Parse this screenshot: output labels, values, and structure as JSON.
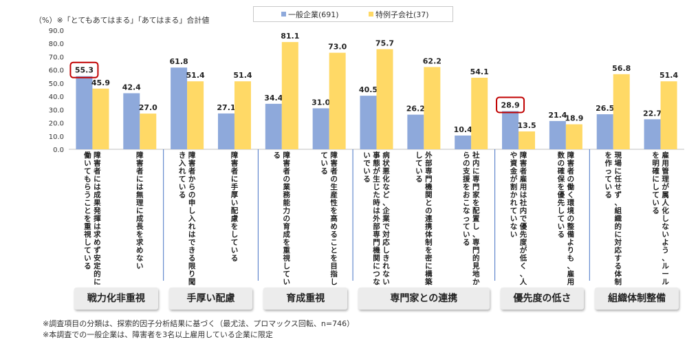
{
  "header": {
    "unit_note": "（%）※「とてもあてはまる」「あてはまる」合計値"
  },
  "legend": {
    "items": [
      {
        "label": "一般企業(691)",
        "color": "#8EA9DB"
      },
      {
        "label": "特例子会社(37)",
        "color": "#FFD966"
      }
    ]
  },
  "footer": {
    "note1": "※調査項目の分類は、探索的因子分析結果に基づく（最尤法、プロマックス回転、n=746）",
    "note2": "※本調査での一般企業は、障害者を3名以上雇用している企業に限定"
  },
  "highlight_color": "#C00000",
  "chart_data": {
    "type": "bar",
    "title": "",
    "ylabel": "（%）",
    "ylim": [
      0,
      90
    ],
    "yticks": [
      "0.0",
      "10.0",
      "20.0",
      "30.0",
      "40.0",
      "50.0",
      "60.0",
      "70.0",
      "80.0",
      "90.0"
    ],
    "categories": [
      "障害者には成果発揮は求めず安定的に働いてもらうことを重視している",
      "障害者には無理に成長を求めない",
      "障害者からの申し入れはできる限り聞き入れている",
      "障害者に手厚い配慮をしている",
      "障害者の業務能力の育成を重視している",
      "障害者の生産性を高めることを目指している",
      "病状悪化など、企業で対応しきれない事態が生じた時は外部専門機関につないでいる",
      "外部専門機関との連携体制を密に構築している",
      "社内に専門家を配置し、専門的見地からの支援をおこなっている",
      "障害者雇用は社内で優先度が低く、人や資金が割かれていない",
      "障害者の働く環境の整備よりも、雇用数の確保を優先している",
      "現場に任せず、組織的に対応する体制を作っている",
      "雇用管理が属人化しないよう、ルールを明確にしている"
    ],
    "series": [
      {
        "name": "一般企業(691)",
        "values": [
          55.3,
          42.4,
          61.8,
          27.1,
          34.4,
          31.0,
          40.5,
          26.2,
          10.4,
          28.9,
          21.4,
          26.5,
          22.7
        ]
      },
      {
        "name": "特例子会社(37)",
        "values": [
          45.9,
          27.0,
          51.4,
          51.4,
          81.1,
          73.0,
          75.7,
          62.2,
          54.1,
          13.5,
          18.9,
          56.8,
          51.4
        ]
      }
    ],
    "value_labels": [
      [
        "55.3",
        "42.4",
        "61.8",
        "27.1",
        "34.4",
        "31.0",
        "40.5",
        "26.2",
        "10.4",
        "28.9",
        "21.4",
        "26.5",
        "22.7"
      ],
      [
        "45.9",
        "27.0",
        "51.4",
        "51.4",
        "81.1",
        "73.0",
        "75.7",
        "62.2",
        "54.1",
        "13.5",
        "18.9",
        "56.8",
        "51.4"
      ]
    ],
    "highlighted_series": 0,
    "highlighted_categories": [
      0,
      9
    ],
    "groups": [
      {
        "label": "戦力化非重視",
        "categories": [
          0,
          1
        ]
      },
      {
        "label": "手厚い配慮",
        "categories": [
          2,
          3
        ]
      },
      {
        "label": "育成重視",
        "categories": [
          4,
          5
        ]
      },
      {
        "label": "専門家との連携",
        "categories": [
          6,
          7,
          8
        ]
      },
      {
        "label": "優先度の低さ",
        "categories": [
          9,
          10
        ]
      },
      {
        "label": "組織体制整備",
        "categories": [
          11,
          12
        ]
      }
    ]
  }
}
